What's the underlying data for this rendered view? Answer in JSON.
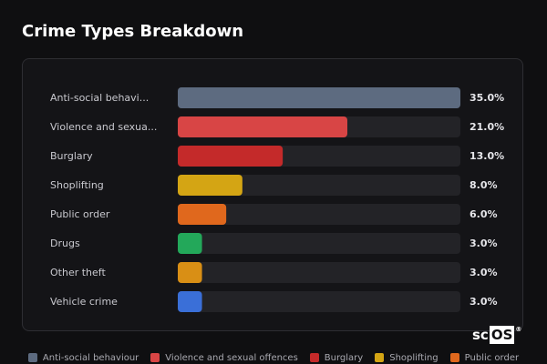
{
  "title": "Crime Types Breakdown",
  "logo": {
    "part_a": "sc",
    "part_b": "OS",
    "mark": "®"
  },
  "chart_data": {
    "type": "bar",
    "orientation": "horizontal",
    "categories": [
      "Anti-social behavi...",
      "Violence and sexua...",
      "Burglary",
      "Shoplifting",
      "Public order",
      "Drugs",
      "Other theft",
      "Vehicle crime"
    ],
    "values": [
      35.0,
      21.0,
      13.0,
      8.0,
      6.0,
      3.0,
      3.0,
      3.0
    ],
    "value_labels": [
      "35.0%",
      "21.0%",
      "13.0%",
      "8.0%",
      "6.0%",
      "3.0%",
      "3.0%",
      "3.0%"
    ],
    "colors": [
      "#5d6b80",
      "#d84545",
      "#c42a2a",
      "#d4a514",
      "#e0681d",
      "#23a85a",
      "#d98f15",
      "#3a6fd8"
    ],
    "xlim": [
      0,
      35
    ],
    "unit": "%",
    "grid": false,
    "legend_position": "bottom"
  },
  "legend": [
    {
      "label": "Anti-social behaviour",
      "color": "#5d6b80"
    },
    {
      "label": "Violence and sexual offences",
      "color": "#d84545"
    },
    {
      "label": "Burglary",
      "color": "#c42a2a"
    },
    {
      "label": "Shoplifting",
      "color": "#d4a514"
    },
    {
      "label": "Public order",
      "color": "#e0681d"
    }
  ]
}
